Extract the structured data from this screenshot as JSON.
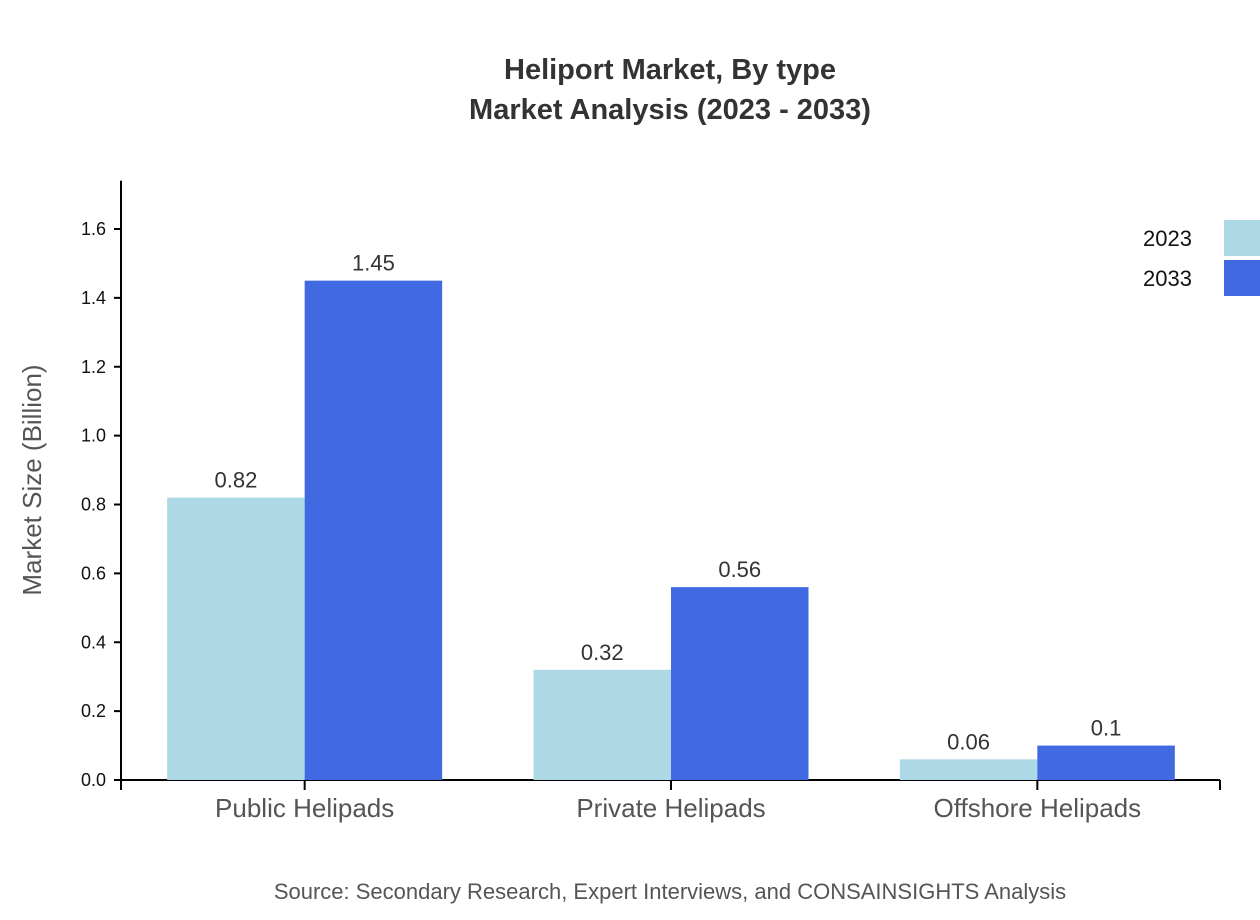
{
  "chart_data": {
    "type": "bar",
    "title": "Heliport Market, By type",
    "subtitle": "Market Analysis (2023 - 2033)",
    "xlabel": "",
    "ylabel": "Market Size (Billion)",
    "ylim": [
      0,
      1.74
    ],
    "yticks": [
      "0.0",
      "0.2",
      "0.4",
      "0.6",
      "0.8",
      "1.0",
      "1.2",
      "1.4",
      "1.6"
    ],
    "categories": [
      "Public Helipads",
      "Private Helipads",
      "Offshore Helipads"
    ],
    "series": [
      {
        "name": "2023",
        "color": "#add8e6",
        "values": [
          0.82,
          0.32,
          0.06
        ],
        "labels": [
          "0.82",
          "0.32",
          "0.06"
        ]
      },
      {
        "name": "2033",
        "color": "#4169e1",
        "values": [
          1.45,
          0.56,
          0.1
        ],
        "labels": [
          "1.45",
          "0.56",
          "0.1"
        ]
      }
    ],
    "legend": "top-right",
    "grid": false,
    "source": "Source: Secondary Research, Expert Interviews, and CONSAINSIGHTS Analysis"
  }
}
